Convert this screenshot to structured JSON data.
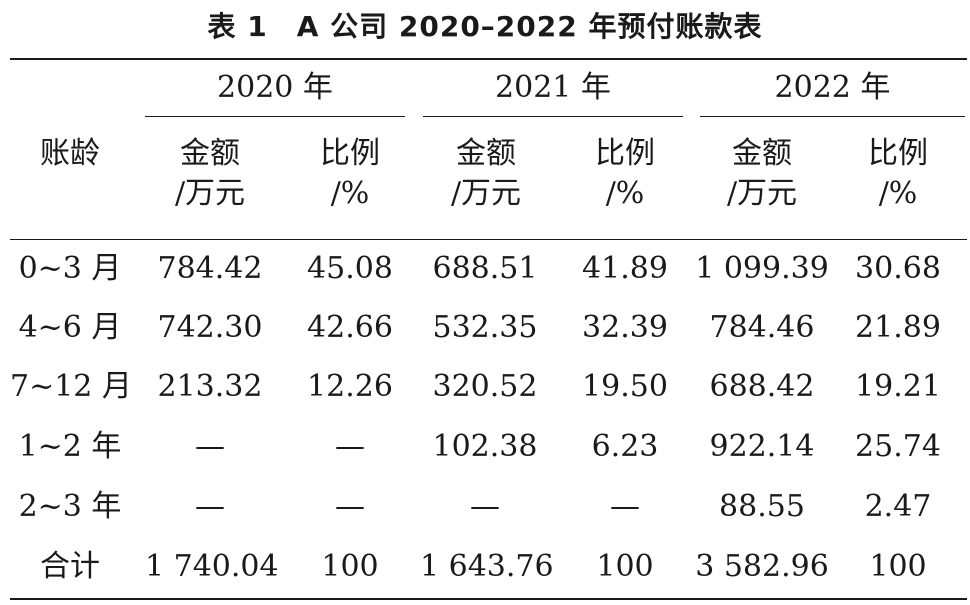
{
  "title": "表 1　A 公司 2020–2022 年预付账款表",
  "header": {
    "row_label": "账龄",
    "years": [
      "2020 年",
      "2021 年",
      "2022 年"
    ],
    "amount_label": [
      "金额",
      "/万元"
    ],
    "ratio_label": [
      "比例",
      "/%"
    ]
  },
  "rows": [
    {
      "label": "0~3 月",
      "values": [
        "784.42",
        "45.08",
        "688.51",
        "41.89",
        "1 099.39",
        "30.68"
      ]
    },
    {
      "label": "4~6 月",
      "values": [
        "742.30",
        "42.66",
        "532.35",
        "32.39",
        "784.46",
        "21.89"
      ]
    },
    {
      "label": "7~12 月",
      "values": [
        "213.32",
        "12.26",
        "320.52",
        "19.50",
        "688.42",
        "19.21"
      ]
    },
    {
      "label": "1~2 年",
      "values": [
        "—",
        "—",
        "102.38",
        "6.23",
        "922.14",
        "25.74"
      ]
    },
    {
      "label": "2~3 年",
      "values": [
        "—",
        "—",
        "—",
        "—",
        "88.55",
        "2.47"
      ]
    },
    {
      "label": "合计",
      "values": [
        "1 740.04",
        "100",
        "1 643.76",
        "100",
        "3 582.96",
        "100"
      ]
    }
  ]
}
